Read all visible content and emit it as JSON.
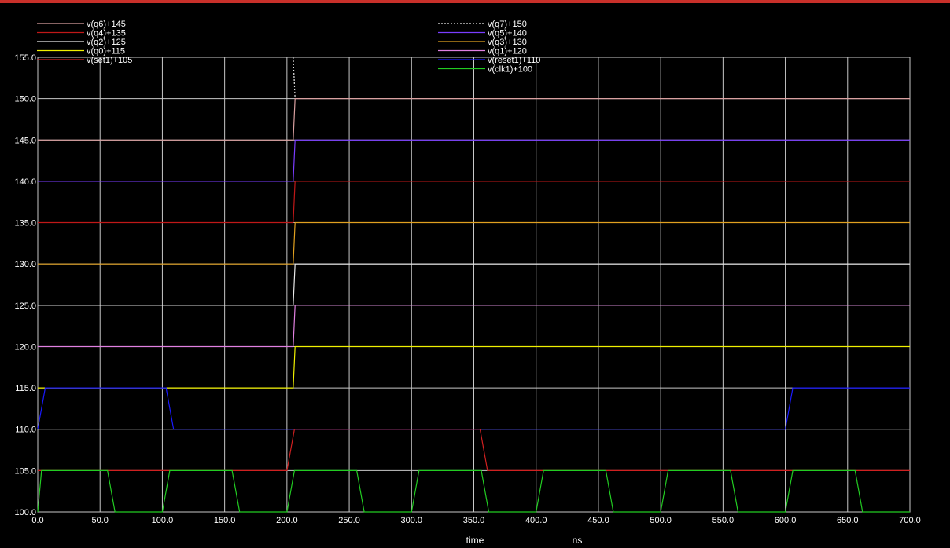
{
  "colors": {
    "background": "#000000",
    "grid": "#c8c8c8",
    "tick_text": "#ffffff",
    "top_bar": "#c8302a"
  },
  "chart_data": {
    "type": "line",
    "xlabel": "time",
    "xunit": "ns",
    "xlim": [
      0,
      700
    ],
    "ylim": [
      100,
      155
    ],
    "x_ticks": [
      "0.0",
      "50.0",
      "100.0",
      "150.0",
      "200.0",
      "250.0",
      "300.0",
      "350.0",
      "400.0",
      "450.0",
      "500.0",
      "550.0",
      "600.0",
      "650.0",
      "700.0"
    ],
    "y_ticks": [
      "100.0",
      "105.0",
      "110.0",
      "115.0",
      "120.0",
      "125.0",
      "130.0",
      "135.0",
      "140.0",
      "145.0",
      "150.0",
      "155.0"
    ],
    "grid": true,
    "legend_left": [
      "v(q6)+145",
      "v(q4)+135",
      "v(q2)+125",
      "v(q0)+115",
      "v(set1)+105"
    ],
    "legend_right": [
      "v(q7)+150",
      "v(q5)+140",
      "v(q3)+130",
      "v(q1)+120",
      "v(reset1)+110",
      "v(clk1)+100"
    ],
    "series": [
      {
        "name": "v(q7)+150",
        "color": "#e6e6e6",
        "dashed": true,
        "x": [
          205,
          206.5
        ],
        "y": [
          155,
          150
        ]
      },
      {
        "name": "v(q6)+145",
        "color": "#d9a0a0",
        "x": [
          0,
          205,
          206.5,
          700
        ],
        "y": [
          145,
          145,
          150,
          150
        ]
      },
      {
        "name": "v(q5)+140",
        "color": "#7a3cff",
        "x": [
          0,
          205,
          206.5,
          700
        ],
        "y": [
          140,
          140,
          145,
          145
        ]
      },
      {
        "name": "v(q4)+135",
        "color": "#c01818",
        "x": [
          0,
          205,
          206.5,
          700
        ],
        "y": [
          135,
          135,
          140,
          140
        ]
      },
      {
        "name": "v(q3)+130",
        "color": "#e0a020",
        "x": [
          0,
          205,
          206.5,
          700
        ],
        "y": [
          130,
          130,
          135,
          135
        ]
      },
      {
        "name": "v(q2)+125",
        "color": "#e8e8e8",
        "x": [
          0,
          205,
          206.5,
          700
        ],
        "y": [
          125,
          125,
          130,
          130
        ]
      },
      {
        "name": "v(q1)+120",
        "color": "#e080e0",
        "x": [
          0,
          205,
          206.5,
          700
        ],
        "y": [
          120,
          120,
          125,
          125
        ]
      },
      {
        "name": "v(q0)+115",
        "color": "#f0f000",
        "x": [
          0,
          205,
          206.5,
          700
        ],
        "y": [
          115,
          115,
          120,
          120
        ]
      },
      {
        "name": "v(reset1)+110",
        "color": "#1a1aff",
        "x": [
          0,
          6,
          103,
          109,
          600,
          606,
          700
        ],
        "y": [
          110,
          115,
          115,
          110,
          110,
          115,
          115
        ]
      },
      {
        "name": "v(set1)+105",
        "color": "#d02020",
        "x": [
          0,
          200,
          206,
          355,
          361,
          700
        ],
        "y": [
          105,
          105,
          110,
          110,
          105,
          105
        ]
      },
      {
        "name": "v(clk1)+100",
        "color": "#22cc22",
        "x": [
          0,
          3,
          56,
          62,
          100,
          106,
          156,
          162,
          200,
          206,
          256,
          262,
          300,
          306,
          356,
          362,
          400,
          406,
          456,
          462,
          500,
          506,
          556,
          562,
          600,
          606,
          656,
          662,
          700
        ],
        "y": [
          100,
          105,
          105,
          100,
          100,
          105,
          105,
          100,
          100,
          105,
          105,
          100,
          100,
          105,
          105,
          100,
          100,
          105,
          105,
          100,
          100,
          105,
          105,
          100,
          100,
          105,
          105,
          100,
          100
        ]
      }
    ]
  }
}
